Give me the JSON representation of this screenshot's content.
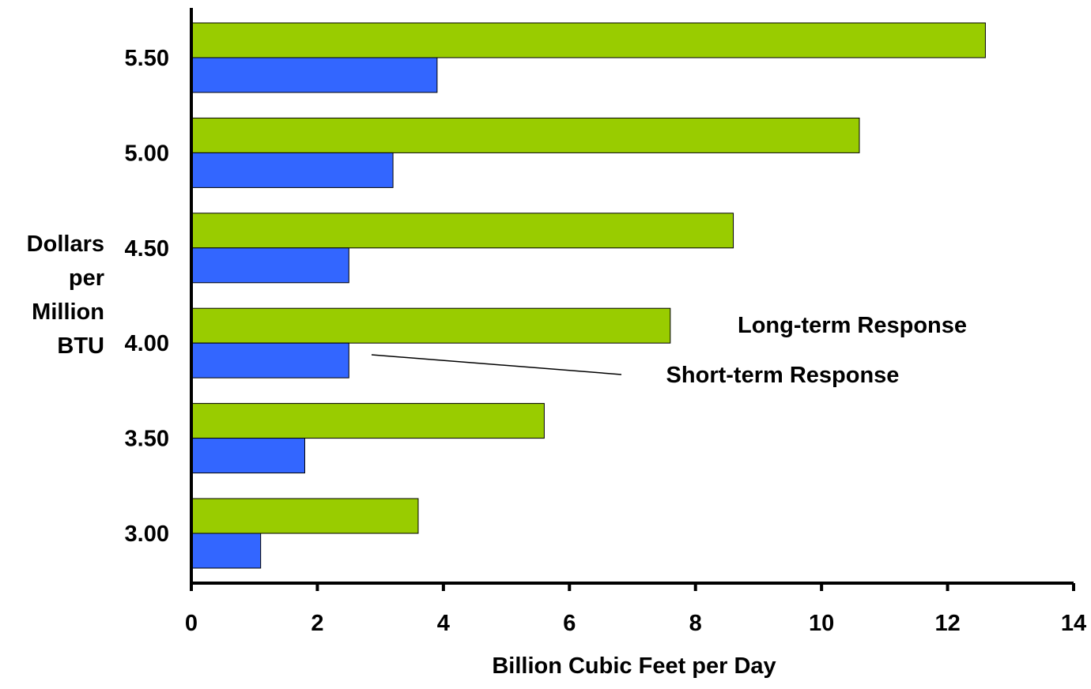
{
  "chart_data": {
    "type": "bar",
    "orientation": "horizontal",
    "categories": [
      "3.00",
      "3.50",
      "4.00",
      "4.50",
      "5.00",
      "5.50"
    ],
    "series": [
      {
        "name": "Long-term Response",
        "color": "#99cc00",
        "values": [
          3.6,
          5.6,
          7.6,
          8.6,
          10.6,
          12.6
        ]
      },
      {
        "name": "Short-term Response",
        "color": "#3366ff",
        "values": [
          1.1,
          1.8,
          2.5,
          2.5,
          3.2,
          3.9
        ]
      }
    ],
    "xlabel": "Billion Cubic Feet per Day",
    "ylabel": [
      "Dollars",
      "per",
      "Million",
      "BTU"
    ],
    "xlim": [
      0,
      14
    ],
    "xticks": [
      "0",
      "2",
      "4",
      "6",
      "8",
      "10",
      "12",
      "14"
    ],
    "grid": false,
    "legend": "labels placed inside plot, right of center"
  }
}
